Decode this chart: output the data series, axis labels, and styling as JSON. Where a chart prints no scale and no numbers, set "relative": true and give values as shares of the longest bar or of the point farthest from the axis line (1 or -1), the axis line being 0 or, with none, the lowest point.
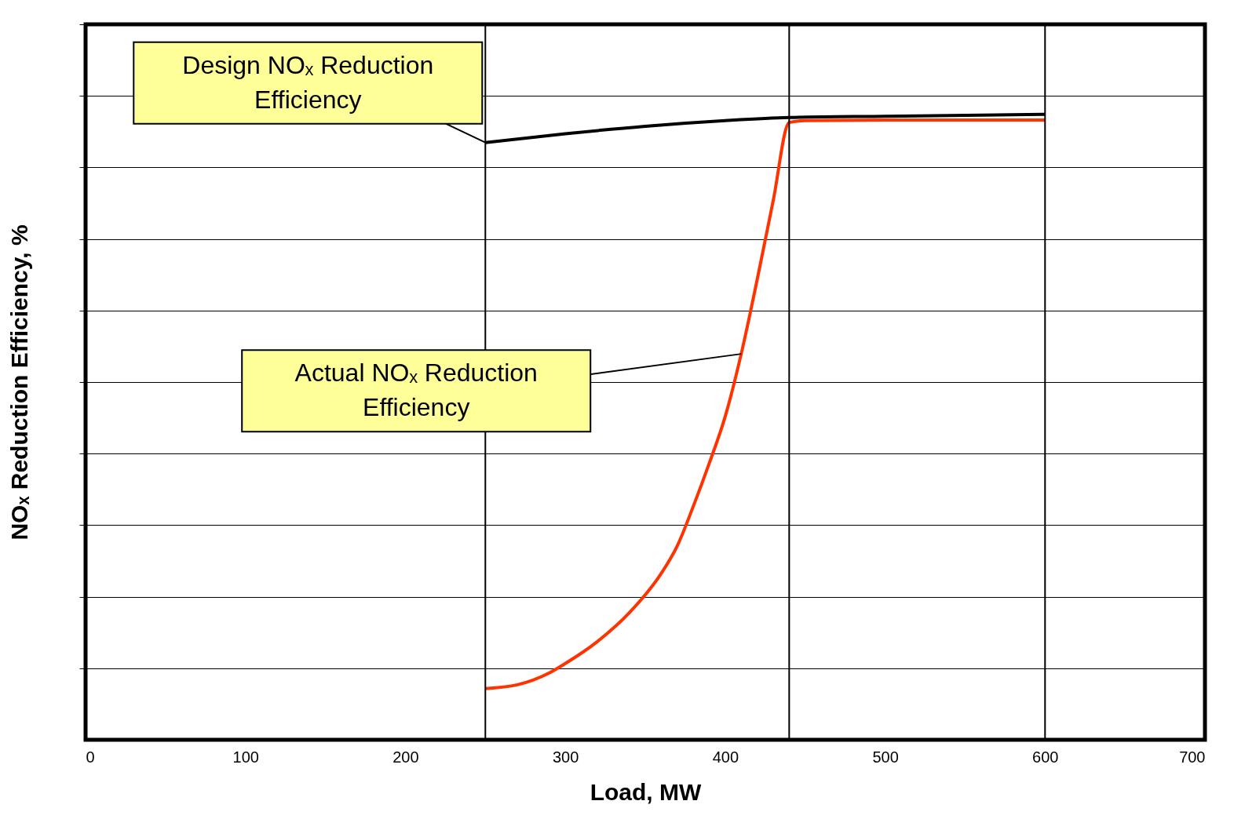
{
  "chart_data": {
    "type": "line",
    "xlabel": "Load, MW",
    "ylabel": "NOₓ Reduction Efficiency, %",
    "relative": true,
    "xlim": [
      0,
      700
    ],
    "xticks": [
      0,
      100,
      200,
      300,
      400,
      500,
      600,
      700
    ],
    "grid": "y",
    "legend": false,
    "marker": "none",
    "line_style": "solid",
    "series": [
      {
        "color": "#000000",
        "x": [
          250,
          300,
          350,
          400,
          440,
          500,
          600
        ],
        "values": [
          0.955,
          0.969,
          0.981,
          0.99,
          0.995,
          0.997,
          1
        ]
      },
      {
        "color": "#ff3300",
        "x": [
          250,
          270,
          290,
          300,
          320,
          340,
          360,
          370,
          380,
          390,
          400,
          410,
          420,
          430,
          440,
          450,
          500,
          600
        ],
        "values": [
          0.082,
          0.088,
          0.107,
          0.122,
          0.157,
          0.203,
          0.266,
          0.31,
          0.373,
          0.442,
          0.517,
          0.617,
          0.736,
          0.862,
          0.987,
          0.99,
          0.991,
          0.991
        ]
      }
    ],
    "ref_lines": [
      {
        "axis": "x",
        "value": 250
      },
      {
        "axis": "x",
        "value": 440
      },
      {
        "axis": "x",
        "value": 600
      }
    ],
    "annotations": [
      {
        "text": "Design NOₓ Reduction Efficiency",
        "x": 250,
        "y": 0.955
      },
      {
        "text": "Actual NOₓ Reduction Efficiency",
        "x": 410,
        "y": 0.617
      }
    ]
  }
}
